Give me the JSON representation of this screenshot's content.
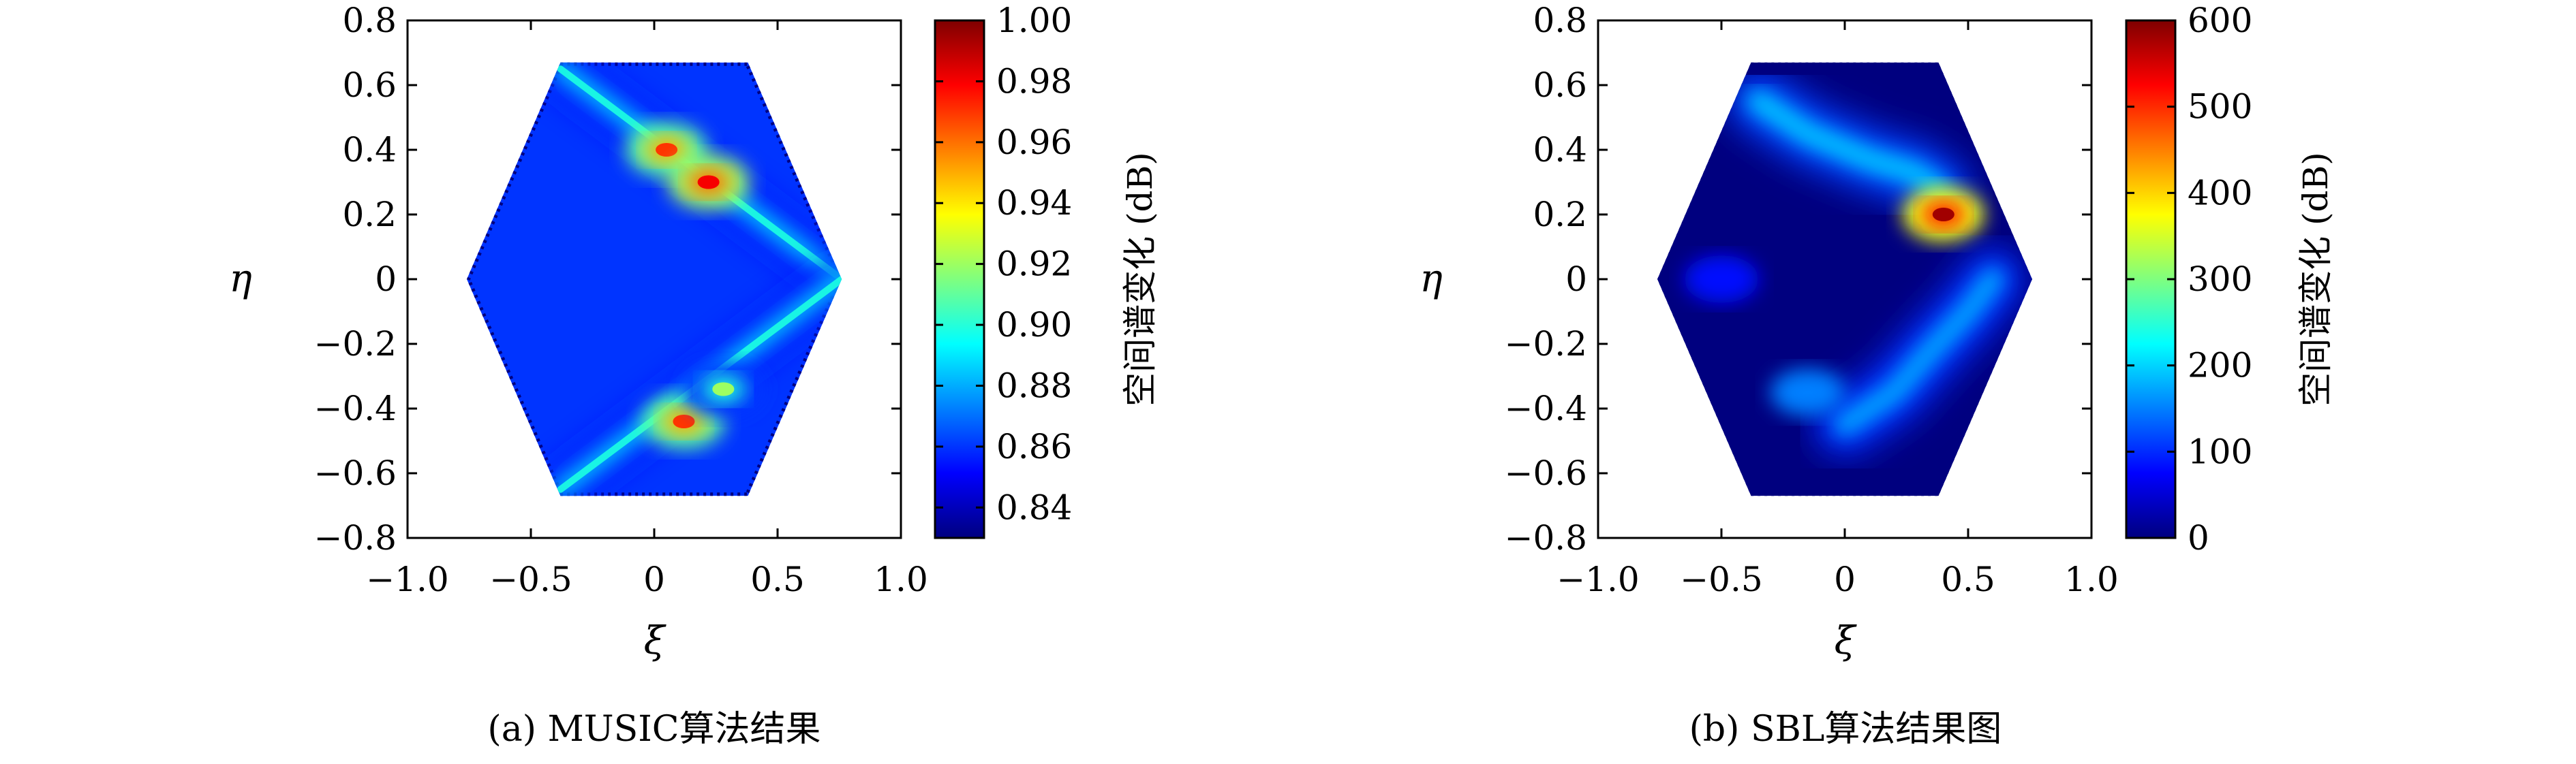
{
  "colormap": {
    "name": "jet",
    "stops": [
      "#00007f",
      "#0000ff",
      "#007fff",
      "#00ffff",
      "#7fff7f",
      "#ffff00",
      "#ff7f00",
      "#ff0000",
      "#7f0000"
    ]
  },
  "chart_data": [
    {
      "type": "heatmap",
      "panel_id": "a",
      "caption": "(a) MUSIC算法结果",
      "xlabel": "ξ",
      "ylabel": "η",
      "xlim": [
        -1.0,
        1.0
      ],
      "ylim": [
        -0.8,
        0.8
      ],
      "x_ticks": [
        "−1.0",
        "−0.5",
        "0",
        "0.5",
        "1.0"
      ],
      "x_tick_values": [
        -1.0,
        -0.5,
        0,
        0.5,
        1.0
      ],
      "y_ticks": [
        "0.8",
        "0.6",
        "0.4",
        "0.2",
        "0",
        "−0.2",
        "−0.4",
        "−0.6",
        "−0.8"
      ],
      "y_tick_values": [
        0.8,
        0.6,
        0.4,
        0.2,
        0,
        -0.2,
        -0.4,
        -0.6,
        -0.8
      ],
      "region": "hexagon",
      "region_vertices": [
        [
          -0.38,
          0.67
        ],
        [
          0.38,
          0.67
        ],
        [
          0.76,
          0.0
        ],
        [
          0.38,
          -0.67
        ],
        [
          -0.38,
          -0.67
        ],
        [
          -0.76,
          0.0
        ]
      ],
      "background_level": 0.86,
      "colorbar": {
        "label": "空间谱变化 (dB)",
        "range": [
          0.83,
          1.0
        ],
        "ticks": [
          "1.00",
          "0.98",
          "0.96",
          "0.94",
          "0.92",
          "0.90",
          "0.88",
          "0.86",
          "0.84"
        ],
        "tick_values": [
          1.0,
          0.98,
          0.96,
          0.94,
          0.92,
          0.9,
          0.88,
          0.86,
          0.84
        ]
      },
      "features": [
        {
          "kind": "ridge",
          "from": [
            -0.38,
            0.65
          ],
          "to": [
            0.76,
            0.0
          ],
          "value": 0.89
        },
        {
          "kind": "ridge",
          "from": [
            -0.38,
            -0.65
          ],
          "to": [
            0.76,
            0.0
          ],
          "value": 0.89
        },
        {
          "kind": "peak",
          "x": 0.05,
          "y": 0.4,
          "value": 0.97
        },
        {
          "kind": "peak",
          "x": 0.22,
          "y": 0.3,
          "value": 0.98
        },
        {
          "kind": "peak",
          "x": 0.12,
          "y": -0.44,
          "value": 0.97
        },
        {
          "kind": "peak",
          "x": 0.28,
          "y": -0.34,
          "value": 0.92
        }
      ]
    },
    {
      "type": "heatmap",
      "panel_id": "b",
      "caption": "(b) SBL算法结果图",
      "xlabel": "ξ",
      "ylabel": "η",
      "xlim": [
        -1.0,
        1.0
      ],
      "ylim": [
        -0.8,
        0.8
      ],
      "x_ticks": [
        "−1.0",
        "−0.5",
        "0",
        "0.5",
        "1.0"
      ],
      "x_tick_values": [
        -1.0,
        -0.5,
        0,
        0.5,
        1.0
      ],
      "y_ticks": [
        "0.8",
        "0.6",
        "0.4",
        "0.2",
        "0",
        "−0.2",
        "−0.4",
        "−0.6",
        "−0.8"
      ],
      "y_tick_values": [
        0.8,
        0.6,
        0.4,
        0.2,
        0,
        -0.2,
        -0.4,
        -0.6,
        -0.8
      ],
      "region": "hexagon",
      "region_vertices": [
        [
          -0.38,
          0.67
        ],
        [
          0.38,
          0.67
        ],
        [
          0.76,
          0.0
        ],
        [
          0.38,
          -0.67
        ],
        [
          -0.38,
          -0.67
        ],
        [
          -0.76,
          0.0
        ]
      ],
      "background_level": 0,
      "colorbar": {
        "label": "空间谱变化 (dB)",
        "range": [
          0,
          600
        ],
        "ticks": [
          "600",
          "500",
          "400",
          "300",
          "200",
          "100",
          "0"
        ],
        "tick_values": [
          600,
          500,
          400,
          300,
          200,
          100,
          0
        ]
      },
      "features": [
        {
          "kind": "arc",
          "points": [
            [
              -0.35,
              0.55
            ],
            [
              -0.15,
              0.45
            ],
            [
              0.1,
              0.37
            ],
            [
              0.28,
              0.33
            ],
            [
              0.38,
              0.28
            ]
          ],
          "value": 190
        },
        {
          "kind": "peak",
          "x": 0.4,
          "y": 0.2,
          "value": 580
        },
        {
          "kind": "arc",
          "points": [
            [
              0.0,
              -0.45
            ],
            [
              0.2,
              -0.35
            ],
            [
              0.35,
              -0.22
            ],
            [
              0.5,
              -0.1
            ],
            [
              0.6,
              0.0
            ]
          ],
          "value": 170
        },
        {
          "kind": "blob",
          "x": -0.15,
          "y": -0.35,
          "value": 150
        },
        {
          "kind": "blob",
          "x": -0.5,
          "y": 0.0,
          "value": 80
        }
      ]
    }
  ]
}
